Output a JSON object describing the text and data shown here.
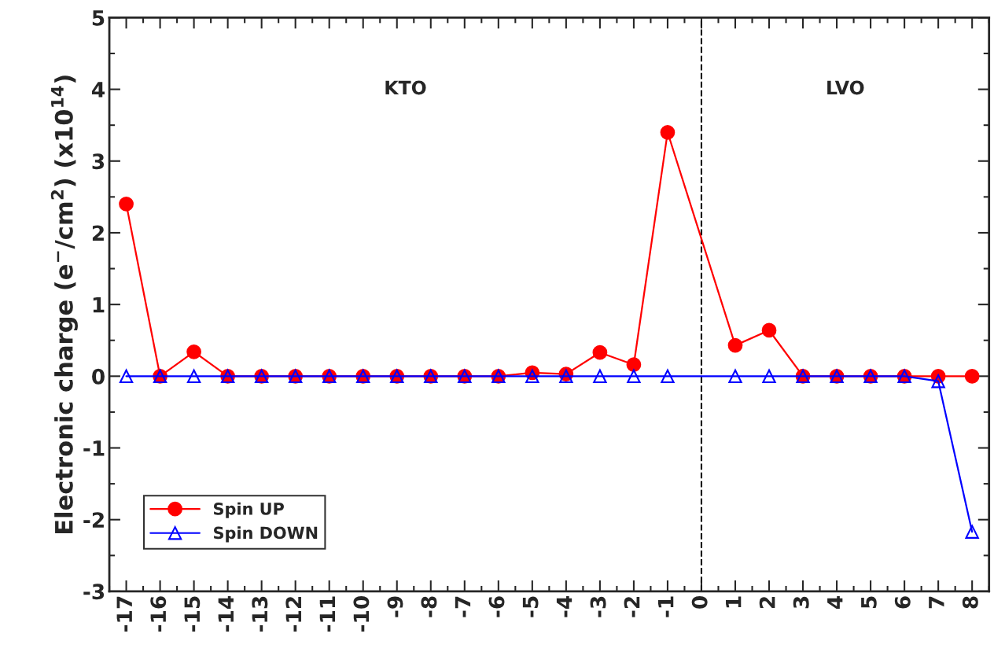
{
  "chart_data": {
    "type": "line",
    "ylabel": "Electronic charge (e$^{−}$/cm$^{2}$) (x10$^{14}$)",
    "xlim": [
      -17.5,
      8.5
    ],
    "xticks": [
      -17,
      -16,
      -15,
      -14,
      -13,
      -12,
      -11,
      -10,
      -9,
      -8,
      -7,
      -6,
      -5,
      -4,
      -3,
      -2,
      -1,
      0,
      1,
      2,
      3,
      4,
      5,
      6,
      7,
      8
    ],
    "ylim": [
      -3,
      5
    ],
    "yticks": [
      -3,
      -2,
      -1,
      0,
      1,
      2,
      3,
      4,
      5
    ],
    "grid": false,
    "legend": "bottom left",
    "ref_lines": [
      {
        "axis": "x",
        "value": 0,
        "color": "#000000",
        "line_style": "dashed"
      }
    ],
    "annotations": [
      "KTO",
      "LVO"
    ],
    "series": [
      {
        "name": "Spin UP",
        "color": "#ff0000",
        "marker": "circle",
        "x": [
          -17,
          -16,
          -15,
          -14,
          -13,
          -12,
          -11,
          -10,
          -9,
          -8,
          -7,
          -6,
          -5,
          -4,
          -3,
          -2,
          -1,
          1,
          2,
          3,
          4,
          5,
          6,
          7,
          8
        ],
        "values": [
          2.4,
          0,
          0.34,
          0,
          0,
          0,
          0,
          0,
          0,
          0,
          0,
          0,
          0.05,
          0.03,
          0.33,
          0.16,
          3.4,
          0.43,
          0.64,
          0,
          0,
          0,
          0,
          0,
          0
        ]
      },
      {
        "name": "Spin DOWN",
        "color": "#0000ff",
        "marker": "triangle",
        "x": [
          -17,
          -16,
          -15,
          -14,
          -13,
          -12,
          -11,
          -10,
          -9,
          -8,
          -7,
          -6,
          -5,
          -4,
          -3,
          -2,
          -1,
          1,
          2,
          3,
          4,
          5,
          6,
          7,
          8
        ],
        "values": [
          0,
          0,
          0,
          0,
          0,
          0,
          0,
          0,
          0,
          0,
          0,
          0,
          0,
          0,
          0,
          0,
          0,
          0,
          0,
          0,
          0,
          0,
          0,
          -0.07,
          -2.17
        ]
      }
    ]
  }
}
